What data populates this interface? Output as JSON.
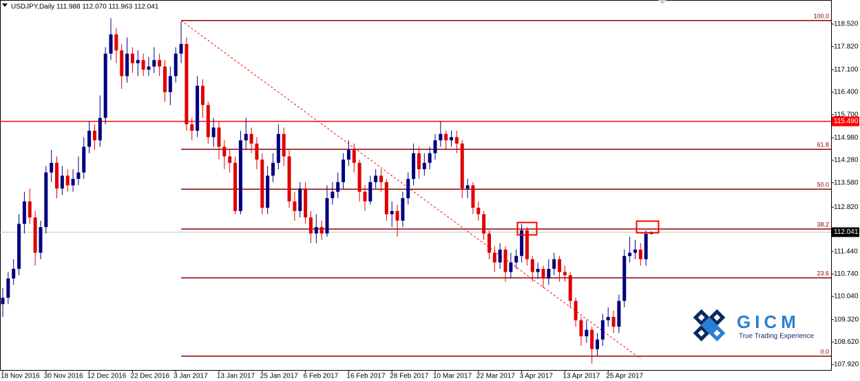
{
  "chart_data": {
    "type": "candlestick",
    "title": "USDJPY,Daily  111.988 112.070 111.963 112.041",
    "categories": [
      "18 Nov 2016",
      null,
      null,
      null,
      null,
      null,
      null,
      null,
      "30 Nov 2016",
      null,
      null,
      null,
      null,
      null,
      null,
      null,
      "12 Dec 2016",
      null,
      null,
      null,
      null,
      null,
      null,
      null,
      "22 Dec 2016",
      null,
      null,
      null,
      null,
      null,
      null,
      null,
      "3 Jan 2017",
      null,
      null,
      null,
      null,
      null,
      null,
      null,
      "13 Jan 2017",
      null,
      null,
      null,
      null,
      null,
      null,
      null,
      "25 Jan 2017",
      null,
      null,
      null,
      null,
      null,
      null,
      null,
      "6 Feb 2017",
      null,
      null,
      null,
      null,
      null,
      null,
      null,
      "16 Feb 2017",
      null,
      null,
      null,
      null,
      null,
      null,
      null,
      "28 Feb 2017",
      null,
      null,
      null,
      null,
      null,
      null,
      null,
      "10 Mar 2017",
      null,
      null,
      null,
      null,
      null,
      null,
      null,
      "22 Mar 2017",
      null,
      null,
      null,
      null,
      null,
      null,
      null,
      "3 Apr 2017",
      null,
      null,
      null,
      null,
      null,
      null,
      null,
      "13 Apr 2017",
      null,
      null,
      null,
      null,
      null,
      null,
      null,
      "25 Apr 2017",
      null,
      null,
      null,
      null,
      null,
      null,
      null,
      null
    ],
    "open": [
      109.8,
      110.0,
      110.6,
      110.9,
      112.3,
      113.0,
      112.5,
      111.4,
      112.2,
      113.9,
      114.2,
      113.4,
      113.8,
      113.5,
      113.7,
      113.9,
      114.7,
      115.2,
      114.9,
      115.6,
      117.6,
      118.2,
      117.7,
      116.9,
      117.6,
      117.3,
      117.4,
      117.1,
      117.2,
      117.4,
      117.2,
      116.4,
      116.9,
      117.6,
      117.9,
      115.4,
      115.2,
      116.6,
      116.0,
      115.0,
      115.3,
      114.7,
      114.4,
      114.2,
      112.7,
      114.9,
      115.1,
      114.8,
      114.3,
      112.8,
      113.8,
      114.2,
      115.1,
      114.4,
      113.0,
      112.7,
      113.4,
      112.5,
      112.0,
      112.2,
      112.0,
      113.1,
      113.3,
      113.6,
      114.3,
      114.6,
      114.2,
      113.3,
      113.0,
      113.6,
      113.8,
      113.6,
      112.6,
      112.7,
      112.4,
      113.1,
      113.7,
      114.5,
      114.0,
      114.2,
      114.5,
      114.9,
      115.1,
      114.9,
      115.0,
      114.8,
      113.4,
      113.5,
      112.8,
      112.6,
      112.0,
      111.4,
      111.1,
      111.5,
      110.8,
      111.1,
      111.3,
      112.1,
      111.2,
      110.8,
      110.9,
      110.6,
      110.9,
      111.2,
      110.8,
      110.7,
      109.9,
      109.3,
      108.8,
      109.0,
      108.4,
      108.7,
      109.3,
      109.4,
      109.1,
      109.9,
      111.3,
      111.4,
      111.5,
      111.2,
      111.988
    ],
    "high": [
      110.3,
      110.8,
      111.2,
      112.6,
      113.3,
      113.4,
      112.7,
      112.4,
      114.1,
      114.6,
      114.4,
      114.1,
      114.0,
      114.0,
      114.4,
      115.0,
      115.5,
      115.4,
      116.3,
      117.8,
      118.7,
      118.4,
      117.9,
      118.1,
      117.8,
      117.7,
      117.6,
      117.5,
      117.8,
      117.6,
      117.4,
      117.2,
      117.8,
      118.6,
      118.1,
      115.6,
      116.9,
      116.8,
      116.1,
      115.6,
      115.5,
      114.9,
      114.6,
      114.4,
      115.2,
      115.6,
      115.3,
      115.0,
      114.5,
      114.1,
      114.5,
      115.4,
      115.3,
      114.6,
      113.3,
      113.6,
      113.6,
      112.7,
      112.6,
      112.4,
      113.5,
      113.6,
      113.9,
      114.5,
      114.9,
      114.8,
      114.3,
      113.5,
      113.8,
      114.0,
      114.0,
      113.7,
      113.0,
      112.9,
      113.3,
      113.9,
      114.8,
      114.7,
      114.5,
      114.7,
      115.1,
      115.5,
      115.2,
      115.2,
      115.2,
      114.9,
      113.7,
      113.6,
      113.0,
      112.7,
      112.1,
      111.6,
      111.7,
      111.6,
      111.4,
      111.5,
      112.3,
      112.2,
      111.3,
      111.1,
      111.0,
      111.2,
      111.4,
      111.3,
      111.0,
      110.8,
      110.0,
      109.4,
      109.3,
      109.1,
      108.9,
      109.5,
      109.7,
      109.6,
      110.1,
      111.5,
      111.9,
      111.8,
      111.7,
      112.1,
      112.07
    ],
    "low": [
      109.4,
      109.8,
      110.4,
      110.7,
      112.0,
      112.3,
      111.0,
      111.2,
      112.0,
      113.6,
      113.1,
      113.2,
      113.3,
      113.3,
      113.5,
      113.7,
      114.5,
      114.6,
      114.7,
      115.4,
      117.4,
      117.3,
      116.5,
      116.7,
      117.0,
      116.9,
      116.9,
      116.9,
      117.0,
      116.9,
      116.1,
      116.0,
      116.7,
      117.3,
      115.2,
      114.9,
      115.0,
      115.6,
      114.8,
      114.7,
      114.3,
      114.0,
      113.9,
      112.6,
      112.6,
      114.6,
      114.5,
      114.0,
      112.6,
      112.6,
      113.6,
      114.0,
      114.1,
      112.8,
      112.4,
      112.5,
      112.3,
      111.7,
      111.7,
      111.8,
      111.9,
      112.9,
      113.1,
      113.4,
      114.1,
      113.9,
      113.0,
      112.7,
      112.9,
      113.4,
      113.3,
      112.4,
      112.2,
      111.9,
      112.2,
      112.9,
      113.5,
      113.7,
      113.8,
      114.0,
      114.3,
      114.7,
      114.6,
      114.7,
      114.5,
      113.1,
      113.1,
      112.6,
      112.4,
      111.8,
      111.2,
      110.8,
      110.9,
      110.5,
      110.6,
      110.9,
      111.1,
      111.0,
      110.5,
      110.6,
      110.3,
      110.4,
      110.7,
      110.5,
      110.5,
      109.7,
      109.1,
      108.5,
      108.6,
      107.95,
      108.2,
      108.5,
      109.1,
      108.9,
      108.9,
      109.7,
      111.1,
      111.2,
      111.0,
      111.0,
      111.963
    ],
    "close": [
      110.0,
      110.6,
      110.9,
      112.3,
      113.0,
      112.5,
      111.4,
      112.2,
      113.9,
      114.2,
      113.4,
      113.8,
      113.5,
      113.7,
      113.9,
      114.7,
      115.2,
      114.9,
      115.6,
      117.6,
      118.2,
      117.7,
      116.9,
      117.6,
      117.3,
      117.4,
      117.1,
      117.2,
      117.4,
      117.2,
      116.4,
      116.9,
      117.6,
      117.9,
      115.4,
      115.2,
      116.6,
      116.0,
      115.0,
      115.3,
      114.7,
      114.4,
      114.2,
      112.7,
      114.9,
      115.1,
      114.8,
      114.3,
      112.8,
      113.8,
      114.2,
      115.1,
      114.4,
      113.0,
      112.7,
      113.4,
      112.5,
      112.0,
      112.2,
      112.0,
      113.1,
      113.3,
      113.6,
      114.3,
      114.6,
      114.2,
      113.3,
      113.0,
      113.6,
      113.8,
      113.6,
      112.6,
      112.7,
      112.4,
      113.1,
      113.7,
      114.5,
      114.0,
      114.2,
      114.5,
      114.9,
      115.1,
      114.9,
      115.0,
      114.8,
      113.4,
      113.5,
      112.8,
      112.6,
      112.0,
      111.4,
      111.1,
      111.5,
      110.8,
      111.1,
      111.3,
      112.1,
      111.2,
      110.8,
      110.9,
      110.6,
      110.9,
      111.2,
      110.8,
      110.7,
      109.9,
      109.3,
      108.8,
      109.0,
      108.4,
      108.7,
      109.3,
      109.4,
      109.1,
      109.9,
      111.3,
      111.4,
      111.5,
      111.2,
      111.988,
      112.041
    ],
    "up_color": "#000080",
    "down_color": "#e00000",
    "ylim": [
      107.75,
      119.27
    ],
    "yticks": [
      {
        "value": 118.52,
        "label": "118.520"
      },
      {
        "value": 117.82,
        "label": "117.820"
      },
      {
        "value": 117.1,
        "label": "117.100"
      },
      {
        "value": 116.4,
        "label": "116.400"
      },
      {
        "value": 115.7,
        "label": "115.700"
      },
      {
        "value": 114.98,
        "label": "114.980"
      },
      {
        "value": 114.28,
        "label": "114.280"
      },
      {
        "value": 113.58,
        "label": "113.580"
      },
      {
        "value": 112.82,
        "label": "112.820"
      },
      {
        "value": 111.44,
        "label": "111.440"
      },
      {
        "value": 110.74,
        "label": "110.740"
      },
      {
        "value": 110.04,
        "label": "110.040"
      },
      {
        "value": 109.32,
        "label": "109.320"
      },
      {
        "value": 108.62,
        "label": "108.620"
      },
      {
        "value": 107.92,
        "label": "107.920"
      }
    ],
    "fib_color": "#8b0000",
    "fib_levels": [
      {
        "label": "100.0",
        "value": 118.63
      },
      {
        "label": "61.8",
        "value": 114.62
      },
      {
        "label": "50.0",
        "value": 113.38
      },
      {
        "label": "38.2",
        "value": 112.14
      },
      {
        "label": "23.6",
        "value": 110.62
      },
      {
        "label": "0.0",
        "value": 108.18
      }
    ],
    "trendline": {
      "x": [
        33,
        118
      ],
      "values": [
        118.63,
        108.1
      ],
      "color": "#ff0000"
    },
    "hlines": [
      {
        "value": 115.49,
        "label": "115.490",
        "color": "#ff0000",
        "tag_color": "#ff0000"
      },
      {
        "value": 112.041,
        "label": "112.041",
        "color": "#c0c0c0",
        "tag_color": "#000000"
      }
    ]
  },
  "logo": {
    "name": "GICM",
    "tagline": "True Trading Experience"
  }
}
